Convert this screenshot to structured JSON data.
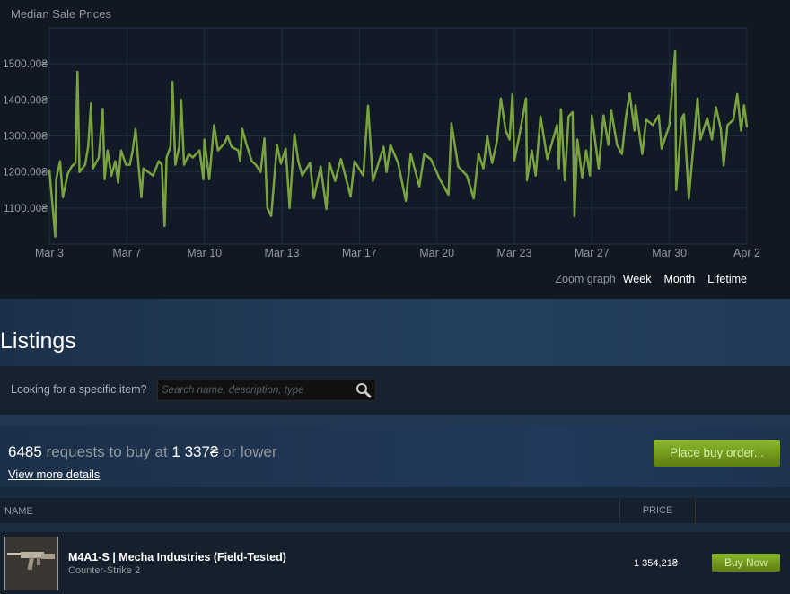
{
  "chart_data": {
    "type": "line",
    "title": "Median Sale Prices",
    "ylim": [
      1000,
      1600
    ],
    "yticks": [
      {
        "value": 1500,
        "label": "1500.00₴"
      },
      {
        "value": 1400,
        "label": "1400.00₴"
      },
      {
        "value": 1300,
        "label": "1300.00₴"
      },
      {
        "value": 1200,
        "label": "1200.00₴"
      },
      {
        "value": 1100,
        "label": "1100.00₴"
      }
    ],
    "xrange": [
      "Mar 3 00:00",
      "Apr 2 00:00"
    ],
    "xticks": [
      "Mar 3",
      "Mar 7",
      "Mar 10",
      "Mar 13",
      "Mar 17",
      "Mar 20",
      "Mar 23",
      "Mar 27",
      "Mar 30",
      "Apr 2"
    ],
    "grid": true,
    "line_color": "#7aa33f",
    "points": [
      [
        "Mar 3 00:00",
        1206
      ],
      [
        "Mar 3 06:00",
        1021
      ],
      [
        "Mar 3 07:00",
        1180
      ],
      [
        "Mar 3 11:00",
        1230
      ],
      [
        "Mar 3 14:00",
        1130
      ],
      [
        "Mar 3 19:00",
        1195
      ],
      [
        "Mar 3 23:00",
        1215
      ],
      [
        "Mar 4 03:00",
        1225
      ],
      [
        "Mar 4 05:00",
        1478
      ],
      [
        "Mar 4 07:00",
        1200
      ],
      [
        "Mar 4 13:00",
        1220
      ],
      [
        "Mar 4 16:00",
        1270
      ],
      [
        "Mar 4 19:00",
        1390
      ],
      [
        "Mar 4 21:00",
        1210
      ],
      [
        "Mar 5 03:00",
        1240
      ],
      [
        "Mar 5 07:00",
        1375
      ],
      [
        "Mar 5 09:00",
        1180
      ],
      [
        "Mar 5 12:00",
        1260
      ],
      [
        "Mar 5 16:00",
        1190
      ],
      [
        "Mar 5 20:00",
        1230
      ],
      [
        "Mar 5 23:00",
        1170
      ],
      [
        "Mar 6 02:00",
        1260
      ],
      [
        "Mar 6 07:00",
        1220
      ],
      [
        "Mar 6 11:00",
        1220
      ],
      [
        "Mar 6 14:00",
        1260
      ],
      [
        "Mar 6 17:00",
        1320
      ],
      [
        "Mar 6 20:00",
        1220
      ],
      [
        "Mar 6 23:00",
        1130
      ],
      [
        "Mar 7 01:00",
        1210
      ],
      [
        "Mar 7 11:00",
        1190
      ],
      [
        "Mar 7 17:00",
        1230
      ],
      [
        "Mar 7 20:00",
        1220
      ],
      [
        "Mar 7 23:00",
        1050
      ],
      [
        "Mar 8 01:00",
        1240
      ],
      [
        "Mar 8 05:00",
        1270
      ],
      [
        "Mar 8 07:00",
        1450
      ],
      [
        "Mar 8 10:00",
        1220
      ],
      [
        "Mar 8 14:00",
        1270
      ],
      [
        "Mar 8 16:00",
        1400
      ],
      [
        "Mar 8 19:00",
        1220
      ],
      [
        "Mar 9 00:00",
        1250
      ],
      [
        "Mar 9 04:00",
        1240
      ],
      [
        "Mar 9 11:00",
        1260
      ],
      [
        "Mar 9 15:00",
        1180
      ],
      [
        "Mar 9 16:00",
        1290
      ],
      [
        "Mar 9 21:00",
        1180
      ],
      [
        "Mar 10 02:00",
        1330
      ],
      [
        "Mar 10 06:00",
        1260
      ],
      [
        "Mar 10 13:00",
        1280
      ],
      [
        "Mar 10 16:00",
        1300
      ],
      [
        "Mar 10 20:00",
        1270
      ],
      [
        "Mar 11 03:00",
        1260
      ],
      [
        "Mar 11 05:00",
        1230
      ],
      [
        "Mar 11 07:00",
        1320
      ],
      [
        "Mar 11 11:00",
        1280
      ],
      [
        "Mar 11 17:00",
        1230
      ],
      [
        "Mar 11 21:00",
        1220
      ],
      [
        "Mar 12 02:00",
        1200
      ],
      [
        "Mar 12 06:00",
        1293
      ],
      [
        "Mar 12 09:00",
        1100
      ],
      [
        "Mar 12 13:00",
        1078
      ],
      [
        "Mar 12 19:00",
        1275
      ],
      [
        "Mar 12 23:00",
        1223
      ],
      [
        "Mar 13 04:00",
        1265
      ],
      [
        "Mar 13 08:00",
        1100
      ],
      [
        "Mar 13 13:00",
        1305
      ],
      [
        "Mar 13 17:00",
        1230
      ],
      [
        "Mar 13 21:00",
        1190
      ],
      [
        "Mar 14 05:00",
        1225
      ],
      [
        "Mar 14 09:00",
        1127
      ],
      [
        "Mar 14 16:00",
        1215
      ],
      [
        "Mar 14 22:00",
        1097
      ],
      [
        "Mar 15 01:00",
        1225
      ],
      [
        "Mar 15 07:00",
        1175
      ],
      [
        "Mar 15 13:00",
        1236
      ],
      [
        "Mar 15 23:00",
        1132
      ],
      [
        "Mar 16 03:00",
        1230
      ],
      [
        "Mar 16 12:00",
        1190
      ],
      [
        "Mar 16 17:00",
        1384
      ],
      [
        "Mar 16 22:00",
        1175
      ],
      [
        "Mar 17 09:00",
        1270
      ],
      [
        "Mar 17 12:00",
        1200
      ],
      [
        "Mar 17 16:00",
        1275
      ],
      [
        "Mar 18 00:00",
        1225
      ],
      [
        "Mar 18 08:00",
        1120
      ],
      [
        "Mar 18 13:00",
        1250
      ],
      [
        "Mar 18 22:00",
        1160
      ],
      [
        "Mar 19 03:00",
        1250
      ],
      [
        "Mar 19 10:00",
        1235
      ],
      [
        "Mar 19 19:00",
        1180
      ],
      [
        "Mar 20 04:00",
        1137
      ],
      [
        "Mar 20 07:00",
        1335
      ],
      [
        "Mar 20 14:00",
        1215
      ],
      [
        "Mar 20 23:00",
        1190
      ],
      [
        "Mar 21 06:00",
        1127
      ],
      [
        "Mar 21 11:00",
        1250
      ],
      [
        "Mar 21 16:00",
        1210
      ],
      [
        "Mar 21 20:00",
        1300
      ],
      [
        "Mar 22 01:00",
        1225
      ],
      [
        "Mar 22 06:00",
        1285
      ],
      [
        "Mar 22 10:00",
        1404
      ],
      [
        "Mar 22 15:00",
        1315
      ],
      [
        "Mar 22 19:00",
        1290
      ],
      [
        "Mar 22 22:00",
        1416
      ],
      [
        "Mar 23 00:00",
        1232
      ],
      [
        "Mar 23 05:00",
        1300
      ],
      [
        "Mar 23 12:00",
        1404
      ],
      [
        "Mar 23 13:00",
        1177
      ],
      [
        "Mar 23 18:00",
        1260
      ],
      [
        "Mar 23 22:00",
        1190
      ],
      [
        "Mar 24 03:00",
        1354
      ],
      [
        "Mar 24 10:00",
        1236
      ],
      [
        "Mar 24 20:00",
        1330
      ],
      [
        "Mar 24 22:00",
        1210
      ],
      [
        "Mar 25 00:00",
        1374
      ],
      [
        "Mar 25 04:00",
        1177
      ],
      [
        "Mar 25 08:00",
        1354
      ],
      [
        "Mar 25 12:00",
        1366
      ],
      [
        "Mar 25 14:00",
        1078
      ],
      [
        "Mar 25 17:00",
        1290
      ],
      [
        "Mar 25 22:00",
        1185
      ],
      [
        "Mar 26 02:00",
        1260
      ],
      [
        "Mar 26 06:00",
        1190
      ],
      [
        "Mar 26 08:00",
        1357
      ],
      [
        "Mar 26 15:00",
        1210
      ],
      [
        "Mar 26 20:00",
        1357
      ],
      [
        "Mar 27 01:00",
        1275
      ],
      [
        "Mar 27 04:00",
        1370
      ],
      [
        "Mar 27 10:00",
        1275
      ],
      [
        "Mar 27 15:00",
        1250
      ],
      [
        "Mar 27 19:00",
        1350
      ],
      [
        "Mar 27 23:00",
        1418
      ],
      [
        "Mar 28 04:00",
        1315
      ],
      [
        "Mar 28 05:00",
        1385
      ],
      [
        "Mar 28 12:00",
        1250
      ],
      [
        "Mar 28 16:00",
        1345
      ],
      [
        "Mar 28 23:00",
        1330
      ],
      [
        "Mar 29 05:00",
        1357
      ],
      [
        "Mar 29 08:00",
        1265
      ],
      [
        "Mar 29 16:00",
        1330
      ],
      [
        "Mar 29 22:00",
        1535
      ],
      [
        "Mar 29 23:00",
        1150
      ],
      [
        "Mar 30 05:00",
        1350
      ],
      [
        "Mar 30 07:00",
        1360
      ],
      [
        "Mar 30 12:00",
        1127
      ],
      [
        "Mar 30 18:00",
        1310
      ],
      [
        "Mar 30 21:00",
        1404
      ],
      [
        "Mar 31 00:00",
        1290
      ],
      [
        "Mar 31 07:00",
        1350
      ],
      [
        "Mar 31 12:00",
        1290
      ],
      [
        "Mar 31 16:00",
        1380
      ],
      [
        "Mar 31 21:00",
        1320
      ],
      [
        "Apr 1 00:00",
        1218
      ],
      [
        "Apr 1 04:00",
        1330
      ],
      [
        "Apr 1 10:00",
        1345
      ],
      [
        "Apr 1 14:00",
        1416
      ],
      [
        "Apr 1 18:00",
        1315
      ],
      [
        "Apr 1 21:00",
        1385
      ],
      [
        "Apr 2 00:00",
        1325
      ]
    ]
  },
  "zoom": {
    "label": "Zoom graph",
    "week": "Week",
    "month": "Month",
    "lifetime": "Lifetime"
  },
  "listings": {
    "title": "Listings"
  },
  "search": {
    "label": "Looking for a specific item?",
    "placeholder": "Search name, description, type",
    "value": "",
    "icon": "search-icon"
  },
  "buy_orders": {
    "count": "6485",
    "text_mid": " requests to buy at ",
    "price": "1 337₴",
    "text_end": " or lower",
    "details_link": "View more details",
    "button": "Place buy order..."
  },
  "table": {
    "headers": {
      "name": "NAME",
      "price": "PRICE"
    },
    "rows": [
      {
        "name": "M4A1-S | Mecha Industries (Field-Tested)",
        "game": "Counter-Strike 2",
        "price": "1 354,21₴",
        "button": "Buy Now"
      }
    ]
  },
  "colors": {
    "accent_green": "#7aa33f",
    "button_green": "#7ea31f",
    "background": "#1b2838"
  }
}
